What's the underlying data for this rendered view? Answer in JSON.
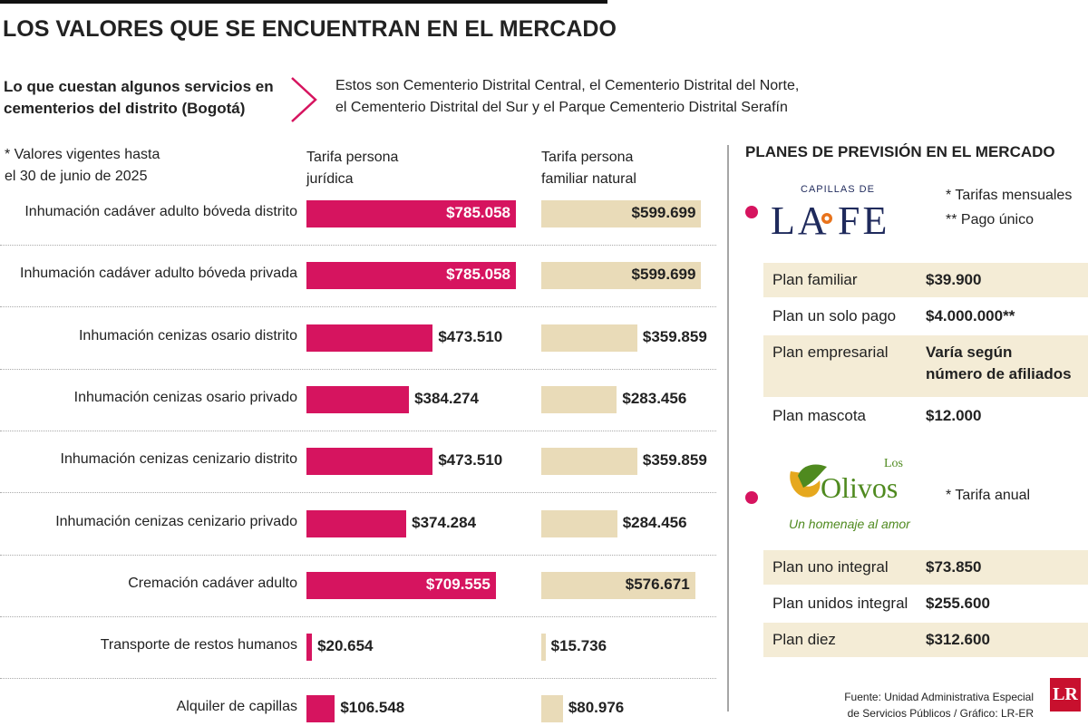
{
  "header": {
    "title": "LOS VALORES QUE SE ENCUENTRAN EN EL MERCADO",
    "subtitle": [
      "Lo que cuestan algunos servicios en",
      "cementerios del distrito (Bogotá)"
    ],
    "description": [
      "Estos son Cementerio Distrital Central, el Cementerio Distrital del Norte,",
      "el Cementerio Distrital del Sur y el Parque Cementerio Distrital Serafín"
    ]
  },
  "chart_data": {
    "type": "bar",
    "orientation": "horizontal",
    "note": [
      "* Valores vigentes hasta",
      "el 30 de junio de 2025"
    ],
    "categories": [
      "Inhumación cadáver adulto bóveda distrito",
      "Inhumación cadáver adulto bóveda privada",
      "Inhumación cenizas osario distrito",
      "Inhumación cenizas osario privado",
      "Inhumación cenizas cenizario distrito",
      "Inhumación cenizas cenizario privado",
      "Cremación cadáver adulto",
      "Transporte de restos humanos",
      "Alquiler de capillas"
    ],
    "series": [
      {
        "name": "Tarifa persona jurídica",
        "color": "#d6145f",
        "values": [
          785058,
          785058,
          473510,
          384274,
          473510,
          374284,
          709555,
          20654,
          106548
        ],
        "value_labels": [
          "$785.058",
          "$785.058",
          "$473.510",
          "$384.274",
          "$473.510",
          "$374.284",
          "$709.555",
          "$20.654",
          "$106.548"
        ]
      },
      {
        "name": "Tarifa persona familiar natural",
        "color": "#e9dbb8",
        "values": [
          599699,
          599699,
          359859,
          283456,
          359859,
          284456,
          576671,
          15736,
          80976
        ],
        "value_labels": [
          "$599.699",
          "$599.699",
          "$359.859",
          "$283.456",
          "$359.859",
          "$284.456",
          "$576.671",
          "$15.736",
          "$80.976"
        ]
      }
    ]
  },
  "plans": {
    "title": "PLANES DE PREVISIÓN EN EL MERCADO",
    "providers": [
      {
        "logo": {
          "top": "CAPILLAS DE",
          "left": "LA",
          "right": "FE"
        },
        "notes": [
          "* Tarifas mensuales",
          "** Pago único"
        ],
        "rows": [
          [
            "Plan familiar",
            "$39.900"
          ],
          [
            "Plan un solo pago",
            "$4.000.000**"
          ],
          [
            "Plan empresarial",
            [
              "Varía según",
              "número de afiliados"
            ]
          ],
          [
            "Plan mascota",
            "$12.000"
          ]
        ]
      },
      {
        "logo": {
          "top": "Los",
          "name": "Olivos",
          "tagline": "Un homenaje al amor"
        },
        "notes": [
          "* Tarifa anual"
        ],
        "rows": [
          [
            "Plan uno integral",
            "$73.850"
          ],
          [
            "Plan unidos integral",
            "$255.600"
          ],
          [
            "Plan diez",
            "$312.600"
          ]
        ]
      }
    ]
  },
  "source": [
    "Fuente: Unidad Administrativa Especial",
    "de Servicios Públicos / Gráfico: LR-ER"
  ],
  "brand": "LR"
}
